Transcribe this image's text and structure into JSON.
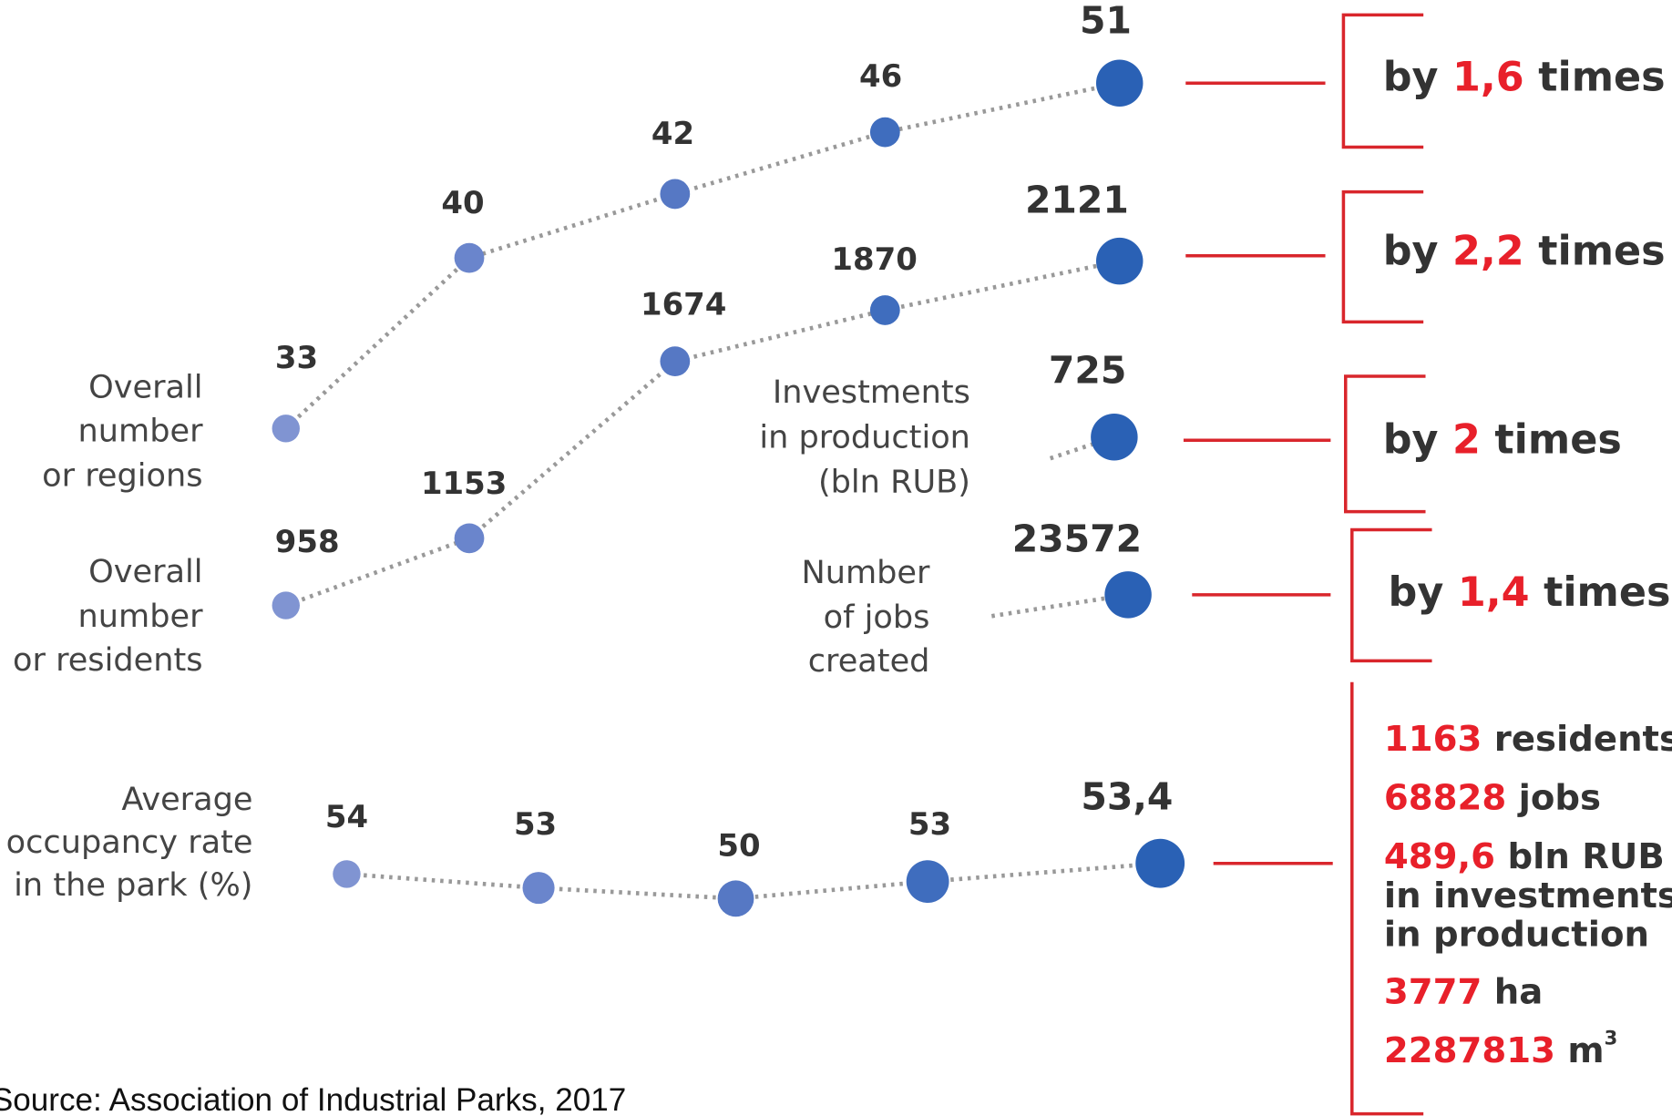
{
  "rows": [
    {
      "label": [
        "Overall",
        "number",
        "or regions"
      ],
      "values": [
        "33",
        "40",
        "42",
        "46",
        "51"
      ],
      "growth": {
        "prefix": "by ",
        "factor": "1,6",
        "suffix": " times"
      }
    },
    {
      "label": [
        "Overall",
        "number",
        "or residents"
      ],
      "values": [
        "958",
        "1153",
        "1674",
        "1870",
        "2121"
      ],
      "growth": {
        "prefix": "by ",
        "factor": "2,2",
        "suffix": " times"
      }
    },
    {
      "label": [
        "Investments",
        "in production",
        "(bln RUB)"
      ],
      "values": [
        "725"
      ],
      "growth": {
        "prefix": "by ",
        "factor": "2",
        "suffix": " times"
      }
    },
    {
      "label": [
        "Number",
        "of jobs",
        "created"
      ],
      "values": [
        "23572"
      ],
      "growth": {
        "prefix": "by ",
        "factor": "1,4",
        "suffix": " times"
      }
    },
    {
      "label": [
        "Average",
        "occupancy rate",
        "in the park (%)"
      ],
      "values": [
        "54",
        "53",
        "50",
        "53",
        "53,4"
      ]
    }
  ],
  "totals": [
    {
      "number": "1163",
      "text": [
        "residents"
      ]
    },
    {
      "number": "68828",
      "text": [
        "jobs"
      ]
    },
    {
      "number": "489,6",
      "text": [
        "bln RUB",
        "in investments",
        "in production"
      ]
    },
    {
      "number": "3777",
      "text": [
        "ha"
      ]
    },
    {
      "number": "2287813",
      "text": [
        "m"
      ],
      "sup": "3"
    }
  ],
  "source": "Source: Association of Industrial Parks, 2017"
}
